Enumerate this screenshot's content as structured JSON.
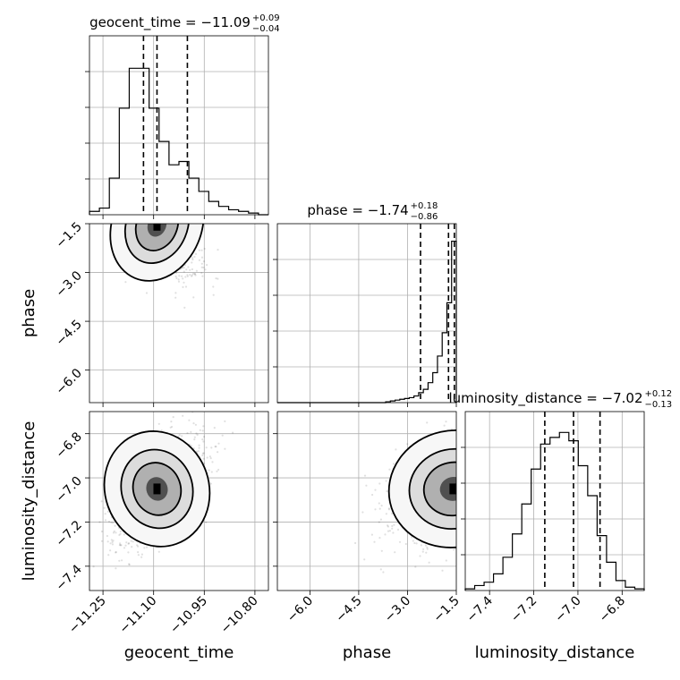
{
  "chart_data": {
    "type": "corner",
    "grid": true,
    "parameters": [
      {
        "name": "geocent_time",
        "label": "geocent_time",
        "title": {
          "prefix": "geocent_time = ",
          "median": "−11.09",
          "plus": "+0.09",
          "minus": "−0.04"
        },
        "range": [
          -11.29,
          -10.76
        ],
        "ticks": [
          -11.25,
          -11.1,
          -10.95,
          -10.8
        ],
        "tick_labels": [
          "−11.25",
          "−11.10",
          "−10.95",
          "−10.80"
        ],
        "quantiles": [
          -11.13,
          -11.09,
          -11.0
        ],
        "histogram": [
          0.02,
          0.04,
          0.22,
          0.64,
          0.88,
          0.88,
          0.64,
          0.44,
          0.3,
          0.32,
          0.22,
          0.14,
          0.08,
          0.05,
          0.03,
          0.02,
          0.01,
          0.0
        ]
      },
      {
        "name": "phase",
        "label": "phase",
        "title": {
          "prefix": "phase = ",
          "median": "−1.74",
          "plus": "+0.18",
          "minus": "−0.86"
        },
        "range": [
          -7.0,
          -1.5
        ],
        "ticks": [
          -6.0,
          -4.5,
          -3.0,
          -1.5
        ],
        "tick_labels": [
          "−6.0",
          "−4.5",
          "−3.0",
          "−1.5"
        ],
        "quantiles": [
          -2.6,
          -1.74,
          -1.56
        ],
        "histogram": [
          0.0,
          0.0,
          0.0,
          0.0,
          0.0,
          0.0,
          0.0,
          0.0,
          0.0,
          0.0,
          0.0,
          0.0,
          0.0,
          0.0,
          0.0,
          0.0,
          0.0,
          0.0,
          0.0,
          0.0,
          0.0,
          0.0,
          0.0,
          0.005,
          0.01,
          0.015,
          0.02,
          0.025,
          0.03,
          0.04,
          0.06,
          0.08,
          0.12,
          0.18,
          0.28,
          0.42,
          0.6,
          0.97
        ]
      },
      {
        "name": "luminosity_distance",
        "label": "luminosity_distance",
        "title": {
          "prefix": "luminosity_distance = ",
          "median": "−7.02",
          "plus": "+0.12",
          "minus": "−0.13"
        },
        "range": [
          -7.51,
          -6.7
        ],
        "ticks": [
          -7.4,
          -7.2,
          -7.0,
          -6.8
        ],
        "tick_labels": [
          "−7.4",
          "−7.2",
          "−7.0",
          "−6.8"
        ],
        "quantiles": [
          -7.15,
          -7.02,
          -6.9
        ],
        "histogram": [
          0.01,
          0.03,
          0.05,
          0.1,
          0.2,
          0.34,
          0.52,
          0.73,
          0.88,
          0.92,
          0.95,
          0.9,
          0.75,
          0.57,
          0.33,
          0.17,
          0.06,
          0.02,
          0.01
        ]
      }
    ],
    "pairs": [
      {
        "x": "geocent_time",
        "y": "phase",
        "peak": [
          -11.09,
          -1.55
        ],
        "spread": [
          0.06,
          0.8
        ],
        "correlation": -0.65
      },
      {
        "x": "geocent_time",
        "y": "luminosity_distance",
        "peak": [
          -11.09,
          -7.05
        ],
        "spread": [
          0.07,
          0.12
        ],
        "correlation": 0.55
      },
      {
        "x": "phase",
        "y": "luminosity_distance",
        "peak": [
          -1.6,
          -7.05
        ],
        "spread": [
          0.9,
          0.12
        ],
        "correlation": 0.35
      }
    ]
  }
}
